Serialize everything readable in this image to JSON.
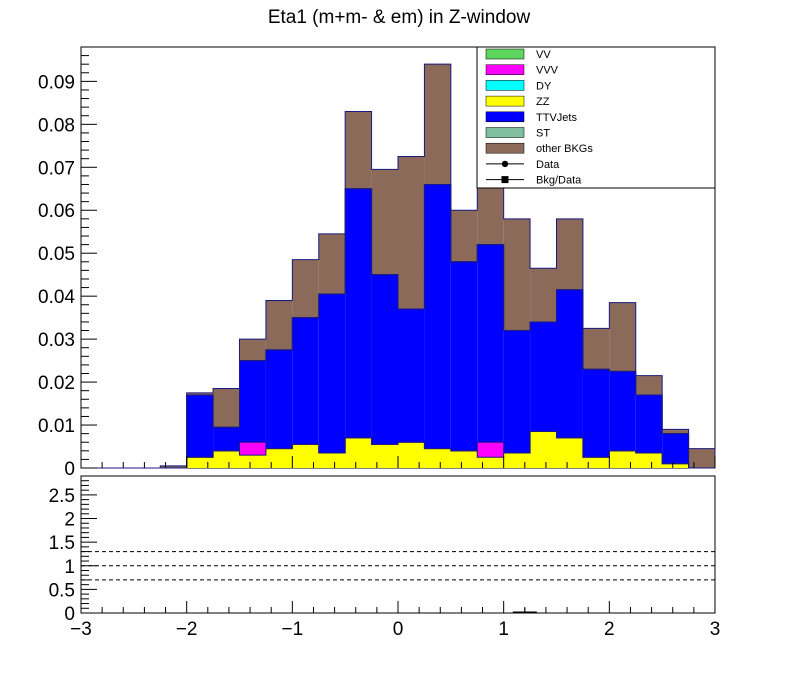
{
  "chart_data": {
    "type": "bar",
    "title": "Eta1 (m+m- & em) in Z-window",
    "xlabel": "",
    "ylabel": "",
    "bins": {
      "min": -3.0,
      "max": 3.0,
      "n": 24
    },
    "ylim": [
      0,
      0.098
    ],
    "yticks": [
      0,
      0.01,
      0.02,
      0.03,
      0.04,
      0.05,
      0.06,
      0.07,
      0.08,
      0.09
    ],
    "ytick_labels": [
      "0",
      "0.01",
      "0.02",
      "0.03",
      "0.04",
      "0.05",
      "0.06",
      "0.07",
      "0.08",
      "0.09"
    ],
    "xticks": [
      -3,
      -2,
      -1,
      0,
      1,
      2,
      3
    ],
    "xtick_labels": [
      "−3",
      "−2",
      "−1",
      "0",
      "1",
      "2",
      "3"
    ],
    "stack_order": [
      "ZZ",
      "VVV",
      "TTVJets",
      "ST",
      "other BKGs"
    ],
    "series": [
      {
        "name": "VV",
        "color": "#5cd65c",
        "values": [
          0,
          0,
          0,
          0,
          0,
          0,
          0,
          0,
          0,
          0,
          0,
          0,
          0,
          0,
          0,
          0,
          0,
          0,
          0,
          0,
          0,
          0,
          0,
          0
        ]
      },
      {
        "name": "VVV",
        "color": "#ff00ff",
        "values": [
          0,
          0,
          0,
          0,
          0,
          0,
          0.003,
          0,
          0,
          0,
          0,
          0,
          0,
          0,
          0,
          0.0035,
          0,
          0,
          0,
          0,
          0,
          0,
          0,
          0
        ]
      },
      {
        "name": "DY",
        "color": "#00ffff",
        "values": [
          0,
          0,
          0,
          0,
          0,
          0,
          0,
          0,
          0,
          0,
          0,
          0,
          0,
          0,
          0,
          0,
          0,
          0,
          0,
          0,
          0,
          0,
          0,
          0
        ]
      },
      {
        "name": "ZZ",
        "color": "#ffff00",
        "values": [
          0,
          0,
          0,
          0,
          0.0025,
          0.004,
          0.003,
          0.0045,
          0.0055,
          0.0035,
          0.007,
          0.0055,
          0.006,
          0.0045,
          0.004,
          0.0025,
          0.0035,
          0.0085,
          0.007,
          0.0025,
          0.004,
          0.0035,
          0.001,
          0
        ]
      },
      {
        "name": "TTVJets",
        "color": "#0000ff",
        "values": [
          0,
          0,
          0,
          0,
          0.0145,
          0.0055,
          0.019,
          0.023,
          0.0295,
          0.037,
          0.058,
          0.0395,
          0.031,
          0.0615,
          0.044,
          0.046,
          0.0285,
          0.0255,
          0.0345,
          0.0205,
          0.0185,
          0.0135,
          0.007,
          0
        ]
      },
      {
        "name": "ST",
        "color": "#7fbf9f",
        "values": [
          0,
          0,
          0,
          0,
          0,
          0,
          0,
          0,
          0,
          0,
          0,
          0,
          0,
          0,
          0,
          0,
          0,
          0,
          0,
          0,
          0,
          0,
          0,
          0
        ]
      },
      {
        "name": "other BKGs",
        "color": "#8c6a5a",
        "values": [
          0,
          0,
          0,
          0.0005,
          0.0005,
          0.009,
          0.005,
          0.0115,
          0.0135,
          0.014,
          0.018,
          0.0245,
          0.0355,
          0.028,
          0.012,
          0.033,
          0.026,
          0.0125,
          0.0165,
          0.0095,
          0.016,
          0.0045,
          0.001,
          0.0045
        ]
      }
    ],
    "legend_entries": [
      "VV",
      "VVV",
      "DY",
      "ZZ",
      "TTVJets",
      "ST",
      "other BKGs",
      "Data",
      "Bkg/Data"
    ],
    "legend_placement": "top-right",
    "ratio_panel": {
      "ylim": [
        0,
        2.9
      ],
      "yticks": [
        0,
        0.5,
        1,
        1.5,
        2,
        2.5
      ],
      "ytick_labels": [
        "0",
        "0.5",
        "1",
        "1.5",
        "2",
        "2.5"
      ],
      "reference_lines": [
        0.7,
        1.0,
        1.3
      ],
      "points": [
        {
          "x": 1.2,
          "y": 0.0
        }
      ]
    },
    "grid": false
  }
}
